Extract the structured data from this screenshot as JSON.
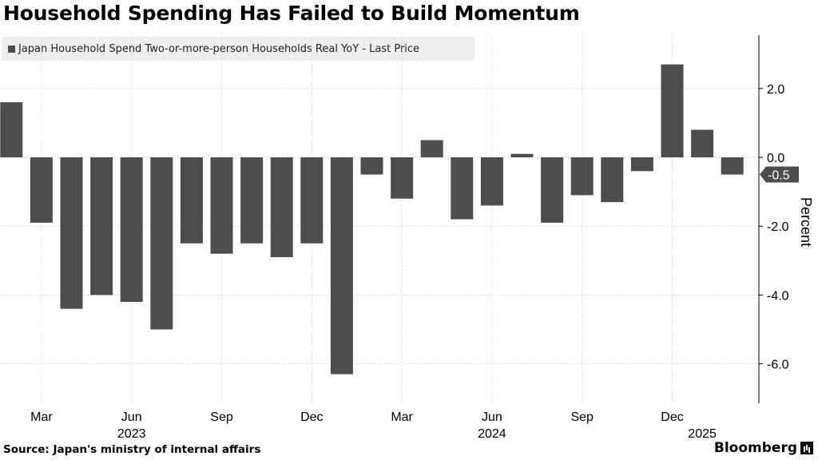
{
  "header": {
    "title": "Household Spending Has Failed to Build Momentum"
  },
  "legend": {
    "label": "Japan Household Spend Two-or-more-person Households Real YoY - Last Price"
  },
  "footer": {
    "source": "Source: Japan's ministry of internal affairs",
    "brand": "Bloomberg"
  },
  "colors": {
    "bar": "#4d4d4d",
    "grid": "#c8c8c8",
    "last_value_tag": "#4d4d4d"
  },
  "chart_data": {
    "type": "bar",
    "ylabel": "Percent",
    "ylim": [
      -7.2,
      3.5
    ],
    "yticks": [
      {
        "value": 2,
        "label": "2.0"
      },
      {
        "value": 0,
        "label": "0.0"
      },
      {
        "value": -2,
        "label": "-2.0"
      },
      {
        "value": -4,
        "label": "-4.0"
      },
      {
        "value": -6,
        "label": "-6.0"
      }
    ],
    "categories": [
      "Feb 2023",
      "Mar 2023",
      "Apr 2023",
      "May 2023",
      "Jun 2023",
      "Jul 2023",
      "Aug 2023",
      "Sep 2023",
      "Oct 2023",
      "Nov 2023",
      "Dec 2023",
      "Jan 2024",
      "Feb 2024",
      "Mar 2024",
      "Apr 2024",
      "May 2024",
      "Jun 2024",
      "Jul 2024",
      "Aug 2024",
      "Sep 2024",
      "Oct 2024",
      "Nov 2024",
      "Dec 2024",
      "Jan 2025",
      "Feb 2025"
    ],
    "values": [
      1.6,
      -1.9,
      -4.4,
      -4.0,
      -4.2,
      -5.0,
      -2.5,
      -2.8,
      -2.5,
      -2.9,
      -2.5,
      -6.3,
      -0.5,
      -1.2,
      0.5,
      -1.8,
      -1.4,
      0.1,
      -1.9,
      -1.1,
      -1.3,
      -0.4,
      2.7,
      0.8,
      -0.5
    ],
    "x_tick_labels": [
      {
        "index": 1,
        "label": "Mar"
      },
      {
        "index": 4,
        "label": "Jun"
      },
      {
        "index": 7,
        "label": "Sep"
      },
      {
        "index": 10,
        "label": "Dec"
      },
      {
        "index": 13,
        "label": "Mar"
      },
      {
        "index": 16,
        "label": "Jun"
      },
      {
        "index": 19,
        "label": "Sep"
      },
      {
        "index": 22,
        "label": "Dec"
      }
    ],
    "year_labels": [
      {
        "index": 4,
        "label": "2023"
      },
      {
        "index": 16,
        "label": "2024"
      },
      {
        "index": 23,
        "label": "2025"
      }
    ],
    "last_value": {
      "value": -0.5,
      "label": "-0.5"
    }
  }
}
